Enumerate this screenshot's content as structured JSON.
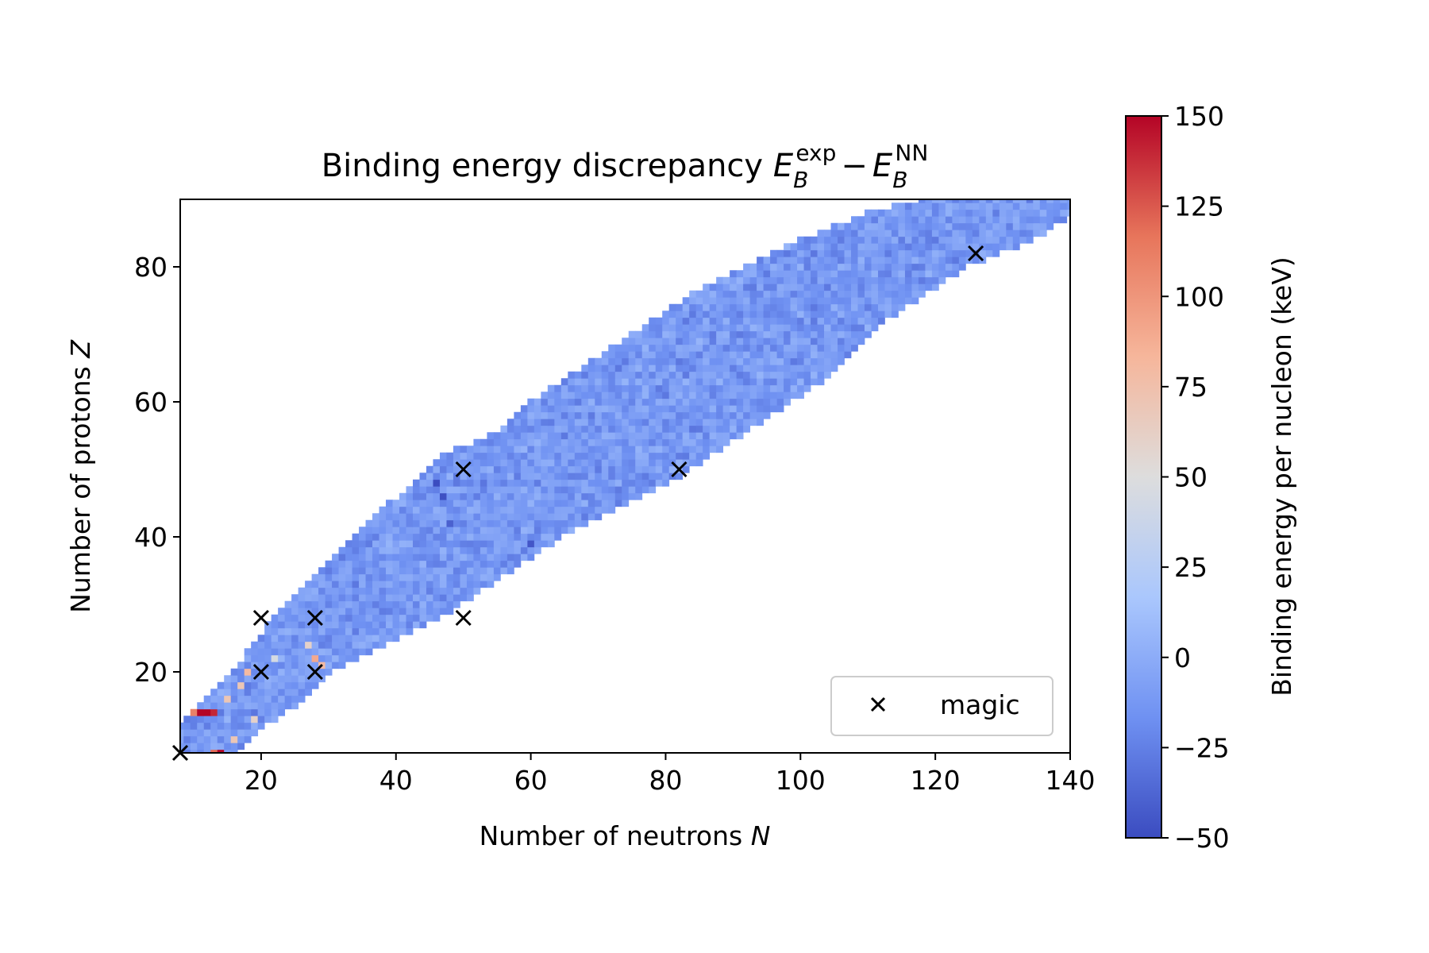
{
  "chart_data": {
    "type": "heatmap",
    "title": "Binding energy discrepancy E_B^exp − E_B^NN",
    "title_parts": {
      "prefix": "Binding energy discrepancy ",
      "e1": "E",
      "s1": "B",
      "p1": "exp",
      "minus": "−",
      "e2": "E",
      "s2": "B",
      "p2": "NN"
    },
    "xlabel": "Number of neutrons ",
    "xlabel_symbol": "N",
    "ylabel": "Number of protons ",
    "ylabel_symbol": "Z",
    "xlim": [
      8,
      140
    ],
    "ylim": [
      8,
      90
    ],
    "xticks": [
      20,
      40,
      60,
      80,
      100,
      120,
      140
    ],
    "yticks": [
      20,
      40,
      60,
      80
    ],
    "colorbar": {
      "label": "Binding energy per nucleon (keV)",
      "range": [
        -50,
        150
      ],
      "ticks": [
        -50,
        -25,
        0,
        25,
        50,
        75,
        100,
        125,
        150
      ],
      "tick_labels": [
        "−50",
        "−25",
        "0",
        "25",
        "50",
        "75",
        "100",
        "125",
        "150"
      ],
      "colormap": "coolwarm",
      "colormap_colors": [
        "#3b4cc0",
        "#6f91f2",
        "#aac7fd",
        "#dddddd",
        "#f6b69b",
        "#e7755b",
        "#b40426"
      ]
    },
    "legend": {
      "label": "magic",
      "marker": "x",
      "placement": "lower-right"
    },
    "magic_points": [
      {
        "n": 20,
        "z": 20
      },
      {
        "n": 20,
        "z": 28
      },
      {
        "n": 28,
        "z": 20
      },
      {
        "n": 28,
        "z": 28
      },
      {
        "n": 50,
        "z": 28
      },
      {
        "n": 50,
        "z": 50
      },
      {
        "n": 82,
        "z": 50
      },
      {
        "n": 126,
        "z": 82
      },
      {
        "n": 8,
        "z": 8
      }
    ],
    "nuclide_region": {
      "description_units": "For each proton number Z, the range of neutron number N with measured nuclides",
      "boundary": [
        {
          "z": 8,
          "n_min": 8,
          "n_max": 16
        },
        {
          "z": 12,
          "n_min": 8,
          "n_max": 20
        },
        {
          "z": 16,
          "n_min": 12,
          "n_max": 26
        },
        {
          "z": 20,
          "n_min": 16,
          "n_max": 30
        },
        {
          "z": 24,
          "n_min": 19,
          "n_max": 38
        },
        {
          "z": 28,
          "n_min": 22,
          "n_max": 46
        },
        {
          "z": 32,
          "n_min": 26,
          "n_max": 52
        },
        {
          "z": 36,
          "n_min": 30,
          "n_max": 58
        },
        {
          "z": 40,
          "n_min": 34,
          "n_max": 64
        },
        {
          "z": 44,
          "n_min": 38,
          "n_max": 72
        },
        {
          "z": 48,
          "n_min": 43,
          "n_max": 80
        },
        {
          "z": 52,
          "n_min": 47,
          "n_max": 86
        },
        {
          "z": 56,
          "n_min": 56,
          "n_max": 92
        },
        {
          "z": 60,
          "n_min": 60,
          "n_max": 98
        },
        {
          "z": 64,
          "n_min": 66,
          "n_max": 104
        },
        {
          "z": 68,
          "n_min": 72,
          "n_max": 108
        },
        {
          "z": 72,
          "n_min": 78,
          "n_max": 112
        },
        {
          "z": 76,
          "n_min": 84,
          "n_max": 118
        },
        {
          "z": 80,
          "n_min": 92,
          "n_max": 124
        },
        {
          "z": 84,
          "n_min": 100,
          "n_max": 134
        },
        {
          "z": 88,
          "n_min": 110,
          "n_max": 140
        },
        {
          "z": 90,
          "n_min": 118,
          "n_max": 140
        }
      ],
      "typical_value": -12,
      "outliers": [
        {
          "n": 11,
          "z": 14,
          "v": 150
        },
        {
          "n": 12,
          "z": 14,
          "v": 150
        },
        {
          "n": 13,
          "z": 14,
          "v": 140
        },
        {
          "n": 14,
          "z": 8,
          "v": 150
        },
        {
          "n": 13,
          "z": 8,
          "v": 120
        },
        {
          "n": 10,
          "z": 14,
          "v": 110
        },
        {
          "n": 9,
          "z": 15,
          "v": 80
        },
        {
          "n": 15,
          "z": 16,
          "v": 70
        },
        {
          "n": 18,
          "z": 20,
          "v": 80
        },
        {
          "n": 17,
          "z": 18,
          "v": 70
        },
        {
          "n": 28,
          "z": 22,
          "v": 90
        },
        {
          "n": 29,
          "z": 21,
          "v": 80
        },
        {
          "n": 16,
          "z": 10,
          "v": 70
        },
        {
          "n": 19,
          "z": 13,
          "v": 60
        },
        {
          "n": 30,
          "z": 17,
          "v": 55
        },
        {
          "n": 27,
          "z": 24,
          "v": 60
        },
        {
          "n": 22,
          "z": 22,
          "v": 45
        },
        {
          "n": 46,
          "z": 48,
          "v": -50
        },
        {
          "n": 47,
          "z": 46,
          "v": -48
        },
        {
          "n": 60,
          "z": 39,
          "v": -45
        },
        {
          "n": 48,
          "z": 42,
          "v": -40
        }
      ]
    }
  }
}
